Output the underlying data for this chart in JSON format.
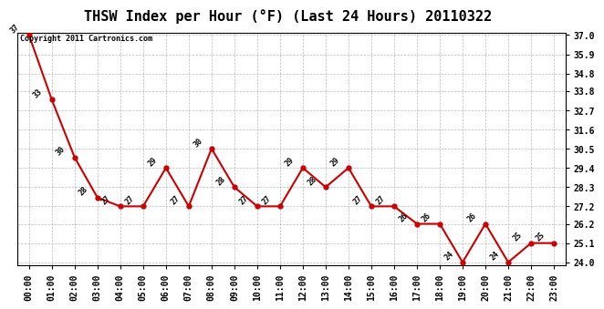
{
  "title": "THSW Index per Hour (°F) (Last 24 Hours) 20110322",
  "copyright_text": "Copyright 2011 Cartronics.com",
  "hours": [
    "00:00",
    "01:00",
    "02:00",
    "03:00",
    "04:00",
    "05:00",
    "06:00",
    "07:00",
    "08:00",
    "09:00",
    "10:00",
    "11:00",
    "12:00",
    "13:00",
    "14:00",
    "15:00",
    "16:00",
    "17:00",
    "18:00",
    "19:00",
    "20:00",
    "21:00",
    "22:00",
    "23:00"
  ],
  "values": [
    37.0,
    33.3,
    30.0,
    27.7,
    27.2,
    27.2,
    29.4,
    27.2,
    30.5,
    28.3,
    27.2,
    27.2,
    29.4,
    28.3,
    29.4,
    27.2,
    27.2,
    26.2,
    26.2,
    24.0,
    26.2,
    24.0,
    25.1,
    25.1
  ],
  "labels": [
    "37",
    "33",
    "30",
    "28",
    "27",
    "27",
    "29",
    "27",
    "30",
    "28",
    "27",
    "27",
    "29",
    "28",
    "29",
    "27",
    "27",
    "26",
    "26",
    "24",
    "26",
    "24",
    "25",
    "25"
  ],
  "ylim_min": 24.0,
  "ylim_max": 37.0,
  "yticks": [
    24.0,
    25.1,
    26.2,
    27.2,
    28.3,
    29.4,
    30.5,
    31.6,
    32.7,
    33.8,
    34.8,
    35.9,
    37.0
  ],
  "ytick_labels": [
    "24.0",
    "25.1",
    "26.2",
    "27.2",
    "28.3",
    "29.4",
    "30.5",
    "31.6",
    "32.7",
    "33.8",
    "34.8",
    "35.9",
    "37.0"
  ],
  "line_color": "#cc0000",
  "marker_color": "#cc0000",
  "bg_color": "#ffffff",
  "plot_bg_color": "#ffffff",
  "grid_color": "#aaaaaa",
  "title_fontsize": 11,
  "label_fontsize": 6,
  "tick_fontsize": 7,
  "copyright_fontsize": 6
}
